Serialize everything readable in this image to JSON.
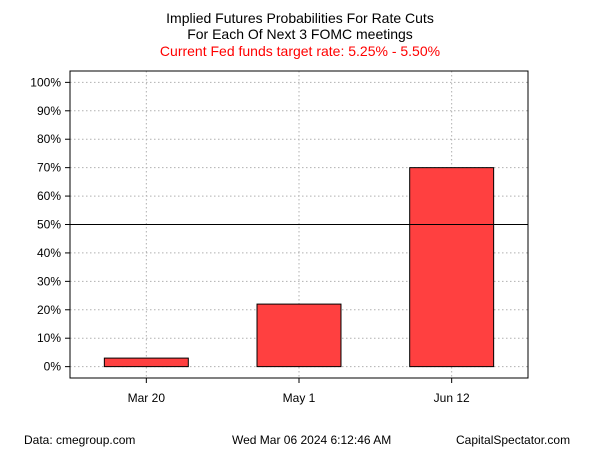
{
  "chart_data": {
    "type": "bar",
    "title_lines": [
      "Implied Futures Probabilities For Rate Cuts",
      "For Each Of Next 3 FOMC meetings"
    ],
    "subtitle": "Current Fed funds target rate: 5.25% - 5.50%",
    "categories": [
      "Mar 20",
      "May 1",
      "Jun 12"
    ],
    "values": [
      3,
      22,
      70
    ],
    "yticks": [
      0,
      10,
      20,
      30,
      40,
      50,
      60,
      70,
      80,
      90,
      100
    ],
    "ytick_labels": [
      "0%",
      "10%",
      "20%",
      "30%",
      "40%",
      "50%",
      "60%",
      "70%",
      "80%",
      "90%",
      "100%"
    ],
    "ylim": [
      -4,
      104
    ],
    "reference_line": 50,
    "grid": true,
    "xlabel": "",
    "ylabel": "",
    "colors": {
      "bar": "#ff4040",
      "bar_border": "#000000",
      "grid": "#b0b0b0",
      "reference_line": "#000000",
      "subtitle": "#ff0000"
    }
  },
  "footer": {
    "left": "Data: cmegroup.com",
    "center": "Wed Mar 06 2024 6:12:46 AM",
    "right": "CapitalSpectator.com"
  }
}
